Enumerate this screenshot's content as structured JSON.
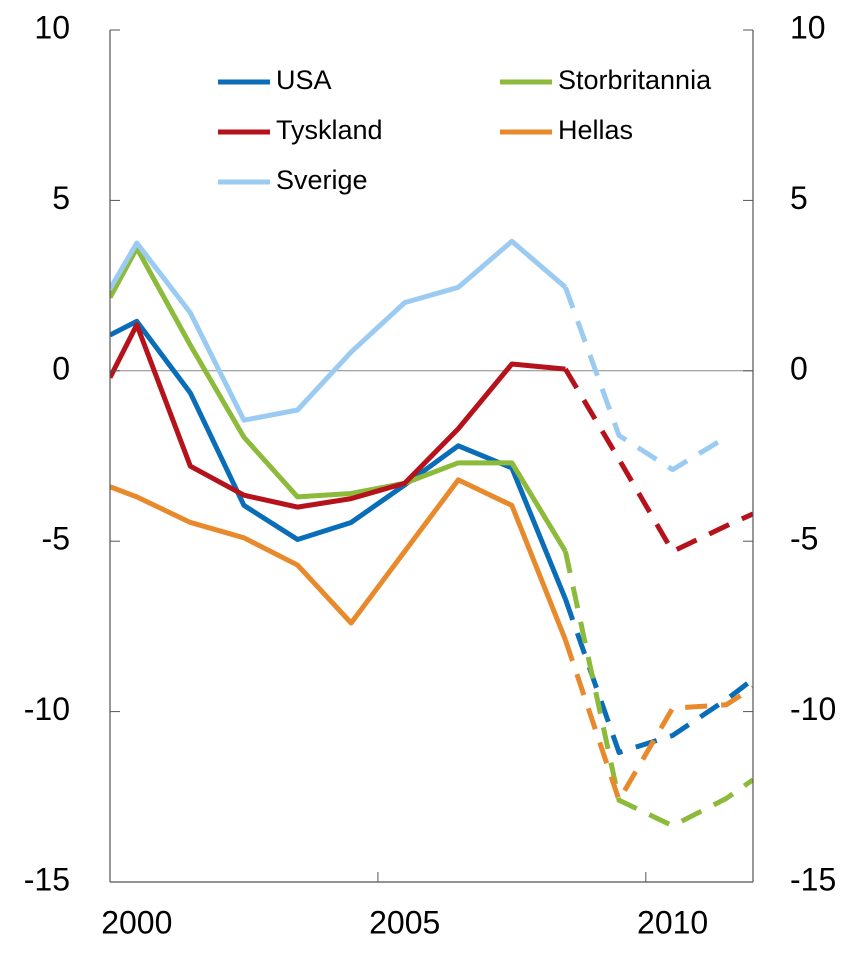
{
  "chart_data": {
    "type": "line",
    "x": [
      2000,
      2000.5,
      2001.5,
      2002.5,
      2003.5,
      2004.5,
      2005.5,
      2006.5,
      2007.5,
      2008.5,
      2009.5,
      2010.5,
      2011.5,
      2012
    ],
    "forecast_from": 2008.5,
    "series": [
      {
        "name": "USA",
        "color": "#0a6db8",
        "values": [
          1.05,
          1.45,
          -0.65,
          -3.95,
          -4.95,
          -4.45,
          -3.35,
          -2.2,
          -2.85,
          -6.7,
          -11.2,
          -10.7,
          -9.65,
          -9.05
        ]
      },
      {
        "name": "Storbritannia",
        "color": "#8cba3a",
        "values": [
          2.15,
          3.6,
          0.75,
          -1.95,
          -3.7,
          -3.6,
          -3.3,
          -2.7,
          -2.7,
          -5.3,
          -12.6,
          -13.35,
          -12.55,
          -12.0
        ]
      },
      {
        "name": "Tyskland",
        "color": "#b5121b",
        "values": [
          -0.2,
          1.35,
          -2.8,
          -3.65,
          -4.0,
          -3.75,
          -3.3,
          -1.7,
          0.2,
          0.05,
          -2.6,
          -5.3,
          -4.55,
          -4.2
        ]
      },
      {
        "name": "Hellas",
        "color": "#e8892b",
        "values": [
          -3.4,
          -3.7,
          -4.45,
          -4.9,
          -5.7,
          -7.4,
          -5.3,
          -3.2,
          -3.95,
          -7.9,
          -12.6,
          -9.9,
          -9.8,
          -9.3
        ]
      },
      {
        "name": "Sverige",
        "color": "#9ccbf2",
        "values": [
          2.4,
          3.75,
          1.7,
          -1.45,
          -1.15,
          0.55,
          2.0,
          2.45,
          3.8,
          2.45,
          -1.9,
          -2.9,
          -1.95,
          null
        ]
      }
    ],
    "xlim": [
      2000,
      2012
    ],
    "xticks": [
      2000,
      2005,
      2010
    ],
    "ylim": [
      -15,
      10
    ],
    "yticks": [
      -15,
      -10,
      -5,
      0,
      5,
      10
    ]
  }
}
